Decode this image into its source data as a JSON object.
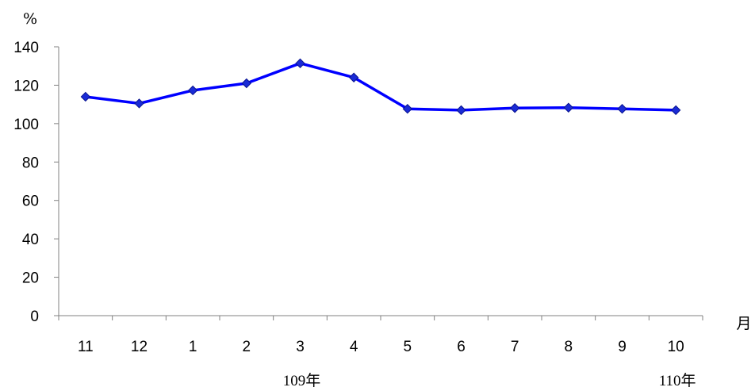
{
  "chart_data": {
    "type": "line",
    "ylabel": "%",
    "xlabel": "月",
    "categories": [
      "11",
      "12",
      "1",
      "2",
      "3",
      "4",
      "5",
      "6",
      "7",
      "8",
      "9",
      "10"
    ],
    "year_labels": [
      {
        "text": "109年",
        "category_index": 4
      },
      {
        "text": "110年",
        "category_index": 11
      }
    ],
    "series": [
      {
        "values": [
          114,
          110.5,
          117.3,
          121,
          131.4,
          124,
          107.7,
          107,
          108.1,
          108.3,
          107.7,
          107
        ],
        "color": "#0000ff",
        "marker": "diamond"
      }
    ],
    "ylim": [
      0,
      140
    ],
    "yticks": [
      0,
      20,
      40,
      60,
      80,
      100,
      120,
      140
    ],
    "grid": false
  }
}
